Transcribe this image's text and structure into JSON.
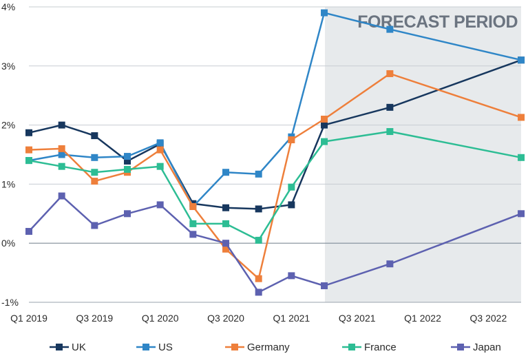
{
  "chart_data": {
    "type": "line",
    "title": "",
    "xlabel": "",
    "ylabel": "",
    "ylim": [
      -1,
      4
    ],
    "ytick_values": [
      -1,
      0,
      1,
      2,
      3,
      4
    ],
    "ytick_labels": [
      "-1%",
      "0%",
      "1%",
      "2%",
      "3%",
      "4%"
    ],
    "x_periods": [
      "Q1 2019",
      "Q2 2019",
      "Q3 2019",
      "Q4 2019",
      "Q1 2020",
      "Q2 2020",
      "Q3 2020",
      "Q4 2020",
      "Q1 2021",
      "Q2 2021",
      "Q3 2021",
      "Q4 2021",
      "Q1 2022",
      "Q2 2022",
      "Q3 2022",
      "Q4 2022"
    ],
    "xtick_labels": [
      "Q1 2019",
      "Q3 2019",
      "Q1 2020",
      "Q3 2020",
      "Q1 2021",
      "Q3 2021",
      "Q1 2022",
      "Q3 2022"
    ],
    "grid": "horizontal",
    "legend_position": "bottom",
    "forecast_region": {
      "label": "FORECAST PERIOD",
      "start_period": "Q2 2021",
      "end_period": "Q4 2022",
      "color": "#e7eaec"
    },
    "series": [
      {
        "name": "UK",
        "color": "#17375e",
        "values": [
          1.87,
          2.0,
          1.82,
          1.39,
          1.68,
          0.67,
          0.6,
          0.58,
          0.65,
          2.0,
          null,
          2.3,
          null,
          null,
          null,
          3.1
        ]
      },
      {
        "name": "US",
        "color": "#2f86c7",
        "values": [
          1.4,
          1.5,
          1.45,
          1.47,
          1.7,
          0.62,
          1.2,
          1.17,
          1.8,
          3.9,
          null,
          3.62,
          null,
          null,
          null,
          3.1
        ]
      },
      {
        "name": "Germany",
        "color": "#ee7f3b",
        "values": [
          1.58,
          1.6,
          1.05,
          1.2,
          1.58,
          0.62,
          -0.1,
          -0.6,
          1.75,
          2.1,
          null,
          2.87,
          null,
          null,
          null,
          2.13
        ]
      },
      {
        "name": "France",
        "color": "#2dbd94",
        "values": [
          1.4,
          1.3,
          1.2,
          1.25,
          1.3,
          0.33,
          0.33,
          0.05,
          0.95,
          1.72,
          null,
          1.89,
          null,
          null,
          null,
          1.45
        ]
      },
      {
        "name": "Japan",
        "color": "#5d61b0",
        "values": [
          0.2,
          0.8,
          0.3,
          0.5,
          0.65,
          0.15,
          0.0,
          -0.83,
          -0.55,
          -0.72,
          null,
          -0.35,
          null,
          null,
          null,
          0.5
        ]
      }
    ]
  }
}
